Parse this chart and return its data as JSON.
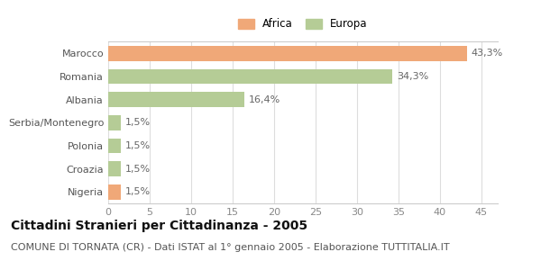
{
  "categories": [
    "Marocco",
    "Romania",
    "Albania",
    "Serbia/Montenegro",
    "Polonia",
    "Croazia",
    "Nigeria"
  ],
  "values": [
    43.3,
    34.3,
    16.4,
    1.5,
    1.5,
    1.5,
    1.5
  ],
  "labels": [
    "43,3%",
    "34,3%",
    "16,4%",
    "1,5%",
    "1,5%",
    "1,5%",
    "1,5%"
  ],
  "colors": [
    "#f0a878",
    "#b5cc96",
    "#b5cc96",
    "#b5cc96",
    "#b5cc96",
    "#b5cc96",
    "#f0a878"
  ],
  "legend_labels": [
    "Africa",
    "Europa"
  ],
  "legend_colors": [
    "#f0a878",
    "#b5cc96"
  ],
  "xlim": [
    0,
    47
  ],
  "xticks": [
    0,
    5,
    10,
    15,
    20,
    25,
    30,
    35,
    40,
    45
  ],
  "title": "Cittadini Stranieri per Cittadinanza - 2005",
  "subtitle": "COMUNE DI TORNATA (CR) - Dati ISTAT al 1° gennaio 2005 - Elaborazione TUTTITALIA.IT",
  "title_fontsize": 10,
  "subtitle_fontsize": 8,
  "label_fontsize": 8,
  "tick_fontsize": 8,
  "bar_height": 0.65,
  "background_color": "#ffffff",
  "grid_color": "#dddddd"
}
